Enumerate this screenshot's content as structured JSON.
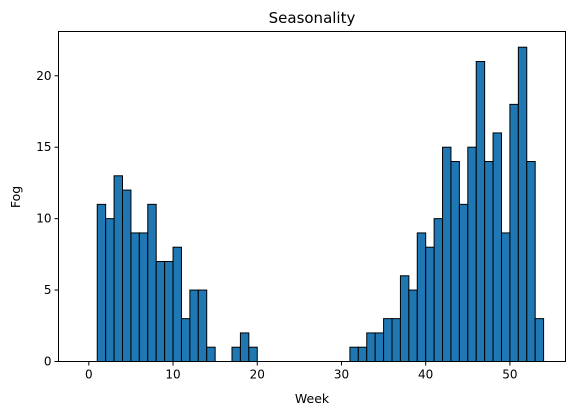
{
  "chart_data": {
    "type": "bar",
    "title": "Seasonality",
    "xlabel": "Week",
    "ylabel": "Fog",
    "bar_color": "#1f77b4",
    "edge_color": "#000000",
    "xlim": [
      -3.6,
      56.6
    ],
    "ylim": [
      0,
      23.1
    ],
    "x_ticks": [
      0,
      10,
      20,
      30,
      40,
      50
    ],
    "y_ticks": [
      0,
      5,
      10,
      15,
      20
    ],
    "grid": false,
    "legend": "none",
    "x": [
      1,
      2,
      3,
      4,
      5,
      6,
      7,
      8,
      9,
      10,
      11,
      12,
      13,
      14,
      15,
      16,
      17,
      18,
      19,
      20,
      21,
      22,
      23,
      24,
      25,
      26,
      27,
      28,
      29,
      30,
      31,
      32,
      33,
      34,
      35,
      36,
      37,
      38,
      39,
      40,
      41,
      42,
      43,
      44,
      45,
      46,
      47,
      48,
      49,
      50,
      51,
      52,
      53
    ],
    "values": [
      11,
      10,
      13,
      12,
      9,
      9,
      11,
      7,
      7,
      8,
      3,
      5,
      5,
      1,
      0,
      0,
      1,
      2,
      1,
      0,
      0,
      0,
      0,
      0,
      0,
      0,
      0,
      0,
      0,
      0,
      1,
      1,
      2,
      2,
      3,
      3,
      6,
      5,
      9,
      8,
      10,
      15,
      14,
      11,
      15,
      21,
      14,
      16,
      9,
      18,
      22,
      14,
      3
    ]
  }
}
